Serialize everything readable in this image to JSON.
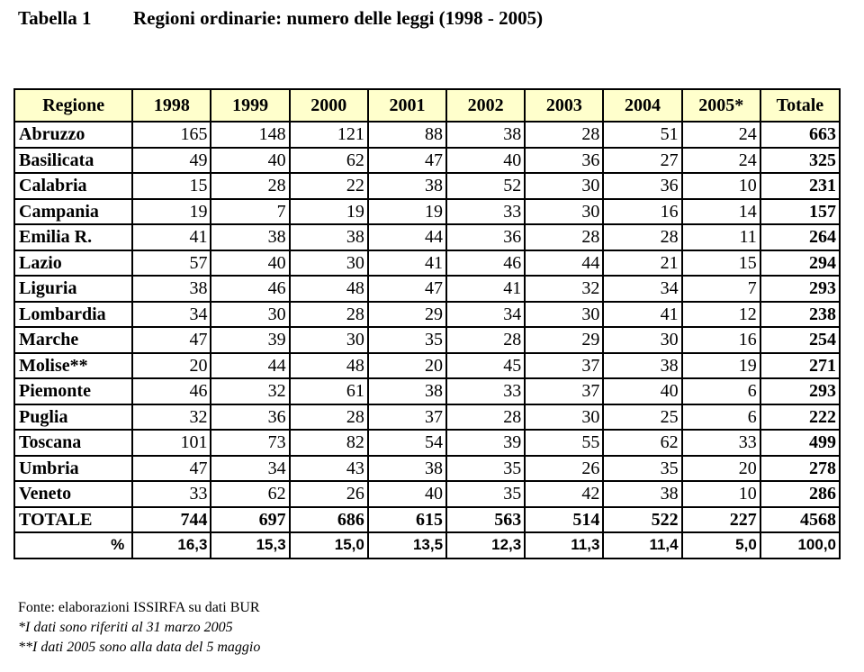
{
  "title": {
    "label": "Tabella 1",
    "text": "Regioni ordinarie: numero delle leggi (1998 - 2005)"
  },
  "table": {
    "headers": [
      "Regione",
      "1998",
      "1999",
      "2000",
      "2001",
      "2002",
      "2003",
      "2004",
      "2005*",
      "Totale"
    ],
    "rows": [
      {
        "region": "Abruzzo",
        "values": [
          "165",
          "148",
          "121",
          "88",
          "38",
          "28",
          "51",
          "24"
        ],
        "total": "663"
      },
      {
        "region": "Basilicata",
        "values": [
          "49",
          "40",
          "62",
          "47",
          "40",
          "36",
          "27",
          "24"
        ],
        "total": "325"
      },
      {
        "region": "Calabria",
        "values": [
          "15",
          "28",
          "22",
          "38",
          "52",
          "30",
          "36",
          "10"
        ],
        "total": "231"
      },
      {
        "region": "Campania",
        "values": [
          "19",
          "7",
          "19",
          "19",
          "33",
          "30",
          "16",
          "14"
        ],
        "total": "157"
      },
      {
        "region": "Emilia R.",
        "values": [
          "41",
          "38",
          "38",
          "44",
          "36",
          "28",
          "28",
          "11"
        ],
        "total": "264"
      },
      {
        "region": "Lazio",
        "values": [
          "57",
          "40",
          "30",
          "41",
          "46",
          "44",
          "21",
          "15"
        ],
        "total": "294"
      },
      {
        "region": "Liguria",
        "values": [
          "38",
          "46",
          "48",
          "47",
          "41",
          "32",
          "34",
          "7"
        ],
        "total": "293"
      },
      {
        "region": "Lombardia",
        "values": [
          "34",
          "30",
          "28",
          "29",
          "34",
          "30",
          "41",
          "12"
        ],
        "total": "238"
      },
      {
        "region": "Marche",
        "values": [
          "47",
          "39",
          "30",
          "35",
          "28",
          "29",
          "30",
          "16"
        ],
        "total": "254"
      },
      {
        "region": "Molise**",
        "values": [
          "20",
          "44",
          "48",
          "20",
          "45",
          "37",
          "38",
          "19"
        ],
        "total": "271"
      },
      {
        "region": "Piemonte",
        "values": [
          "46",
          "32",
          "61",
          "38",
          "33",
          "37",
          "40",
          "6"
        ],
        "total": "293"
      },
      {
        "region": "Puglia",
        "values": [
          "32",
          "36",
          "28",
          "37",
          "28",
          "30",
          "25",
          "6"
        ],
        "total": "222"
      },
      {
        "region": "Toscana",
        "values": [
          "101",
          "73",
          "82",
          "54",
          "39",
          "55",
          "62",
          "33"
        ],
        "total": "499"
      },
      {
        "region": "Umbria",
        "values": [
          "47",
          "34",
          "43",
          "38",
          "35",
          "26",
          "35",
          "20"
        ],
        "total": "278"
      },
      {
        "region": "Veneto",
        "values": [
          "33",
          "62",
          "26",
          "40",
          "35",
          "42",
          "38",
          "10"
        ],
        "total": "286"
      }
    ],
    "totale": {
      "region": "TOTALE",
      "values": [
        "744",
        "697",
        "686",
        "615",
        "563",
        "514",
        "522",
        "227"
      ],
      "total": "4568"
    },
    "percent": {
      "region": "%",
      "values": [
        "16,3",
        "15,3",
        "15,0",
        "13,5",
        "12,3",
        "11,3",
        "11,4",
        "5,0"
      ],
      "total": "100,0"
    }
  },
  "notes": {
    "source": "Fonte: elaborazioni ISSIRFA su dati BUR",
    "note1": "*I dati sono riferiti al 31 marzo 2005",
    "note2": "**I dati 2005 sono alla data del 5 maggio"
  },
  "colors": {
    "header_bg": "#ffffcc",
    "border": "#000000"
  }
}
